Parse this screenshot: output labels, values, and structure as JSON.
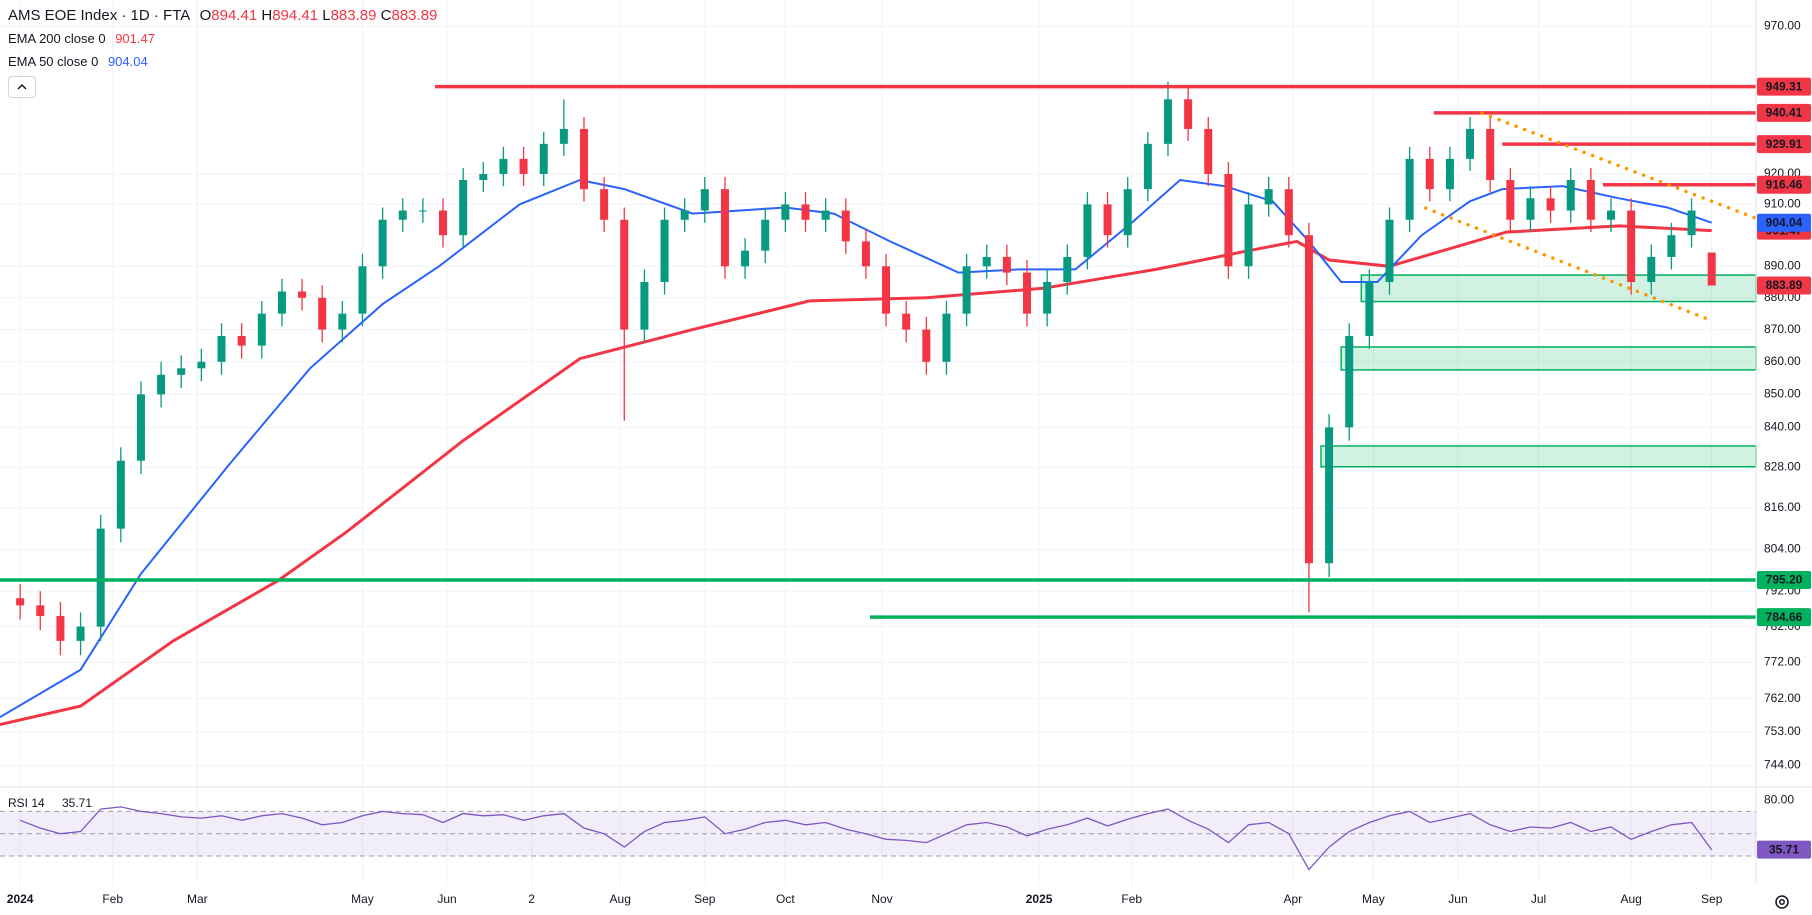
{
  "chart_data": {
    "type": "candlestick",
    "title": "AMS EOE Index · 1D · FTA",
    "ohlc_labels": [
      "O",
      "H",
      "L",
      "C"
    ],
    "log_scale": true,
    "grid": true,
    "up_color": "#089981",
    "down_color": "#f23645",
    "xlim": [
      -5,
      431
    ],
    "ylim": [
      738.5,
      979.3
    ],
    "yticks": [
      {
        "value": 744,
        "label": "744.00"
      },
      {
        "value": 753,
        "label": "753.00"
      },
      {
        "value": 762,
        "label": "762.00"
      },
      {
        "value": 772,
        "label": "772.00"
      },
      {
        "value": 782,
        "label": "782.00"
      },
      {
        "value": 792,
        "label": "792.00"
      },
      {
        "value": 804,
        "label": "804.00"
      },
      {
        "value": 816,
        "label": "816.00"
      },
      {
        "value": 828,
        "label": "828.00"
      },
      {
        "value": 840,
        "label": "840.00"
      },
      {
        "value": 850,
        "label": "850.00"
      },
      {
        "value": 860,
        "label": "860.00"
      },
      {
        "value": 870,
        "label": "870.00"
      },
      {
        "value": 880,
        "label": "880.00"
      },
      {
        "value": 890,
        "label": "890.00"
      },
      {
        "value": 910,
        "label": "910.00"
      },
      {
        "value": 920,
        "label": "920.00"
      },
      {
        "value": 970,
        "label": "970.00"
      }
    ],
    "xticks": [
      {
        "value": 0,
        "label": "2024"
      },
      {
        "value": 23,
        "label": "Feb"
      },
      {
        "value": 44,
        "label": "Mar"
      },
      {
        "value": 85,
        "label": "May"
      },
      {
        "value": 106,
        "label": "Jun"
      },
      {
        "value": 127,
        "label": "2"
      },
      {
        "value": 149,
        "label": "Aug"
      },
      {
        "value": 170,
        "label": "Sep"
      },
      {
        "value": 190,
        "label": "Oct"
      },
      {
        "value": 214,
        "label": "Nov"
      },
      {
        "value": 253,
        "label": "2025"
      },
      {
        "value": 276,
        "label": "Feb"
      },
      {
        "value": 316,
        "label": "Apr"
      },
      {
        "value": 336,
        "label": "May"
      },
      {
        "value": 357,
        "label": "Jun"
      },
      {
        "value": 377,
        "label": "Jul"
      },
      {
        "value": 400,
        "label": "Aug"
      },
      {
        "value": 420,
        "label": "Sep"
      }
    ],
    "x": [
      0,
      5,
      10,
      15,
      20,
      25,
      30,
      35,
      40,
      45,
      50,
      55,
      60,
      65,
      70,
      75,
      80,
      85,
      90,
      95,
      100,
      105,
      110,
      115,
      120,
      125,
      130,
      135,
      140,
      145,
      150,
      155,
      160,
      165,
      170,
      175,
      180,
      185,
      190,
      195,
      200,
      205,
      210,
      215,
      220,
      225,
      230,
      235,
      240,
      245,
      250,
      255,
      260,
      265,
      270,
      275,
      280,
      285,
      290,
      295,
      300,
      305,
      310,
      315,
      320,
      325,
      330,
      335,
      340,
      345,
      350,
      355,
      360,
      365,
      370,
      375,
      380,
      385,
      390,
      395,
      400,
      405,
      410,
      415,
      420
    ],
    "open": [
      790,
      788,
      785,
      778,
      782,
      810,
      830,
      850,
      856,
      858,
      860,
      868,
      865,
      875,
      882,
      880,
      870,
      875,
      890,
      905,
      908,
      908,
      900,
      918,
      920,
      925,
      920,
      930,
      935,
      915,
      905,
      870,
      885,
      905,
      908,
      915,
      890,
      895,
      905,
      910,
      905,
      908,
      898,
      890,
      875,
      870,
      860,
      875,
      890,
      893,
      888,
      875,
      885,
      893,
      910,
      900,
      915,
      930,
      945,
      935,
      920,
      890,
      910,
      915,
      900,
      800,
      840,
      868,
      885,
      905,
      925,
      915,
      925,
      935,
      918,
      905,
      912,
      908,
      918,
      905,
      908,
      885,
      893,
      900,
      894.41
    ],
    "high": [
      794,
      792,
      789,
      786,
      814,
      834,
      854,
      860,
      862,
      864,
      872,
      872,
      879,
      886,
      886,
      884,
      879,
      894,
      909,
      912,
      912,
      912,
      922,
      924,
      929,
      929,
      934,
      945,
      939,
      919,
      909,
      889,
      909,
      912,
      919,
      919,
      899,
      909,
      914,
      914,
      912,
      912,
      902,
      894,
      879,
      874,
      879,
      894,
      897,
      897,
      892,
      889,
      897,
      914,
      914,
      919,
      934,
      951,
      949,
      939,
      924,
      914,
      919,
      919,
      904,
      844,
      872,
      889,
      909,
      929,
      929,
      929,
      939,
      939,
      922,
      916,
      916,
      922,
      922,
      912,
      912,
      897,
      904,
      912,
      894.41
    ],
    "low": [
      784,
      781,
      774,
      774,
      778,
      806,
      826,
      846,
      852,
      854,
      856,
      861,
      861,
      871,
      876,
      866,
      866,
      871,
      886,
      901,
      904,
      896,
      896,
      914,
      916,
      916,
      916,
      926,
      911,
      901,
      842,
      866,
      881,
      901,
      904,
      886,
      886,
      891,
      901,
      901,
      901,
      894,
      886,
      871,
      866,
      856,
      856,
      871,
      886,
      884,
      871,
      871,
      881,
      889,
      896,
      896,
      911,
      926,
      931,
      916,
      886,
      886,
      906,
      896,
      786,
      796,
      836,
      864,
      881,
      901,
      911,
      911,
      921,
      914,
      901,
      901,
      904,
      904,
      901,
      901,
      881,
      881,
      889,
      896,
      883.89
    ],
    "close": [
      788,
      785,
      778,
      782,
      810,
      830,
      850,
      856,
      858,
      860,
      868,
      865,
      875,
      882,
      880,
      870,
      875,
      890,
      905,
      908,
      908,
      900,
      918,
      920,
      925,
      920,
      930,
      935,
      915,
      905,
      870,
      885,
      905,
      908,
      915,
      890,
      895,
      905,
      910,
      905,
      908,
      898,
      890,
      875,
      870,
      860,
      875,
      890,
      893,
      888,
      875,
      885,
      893,
      910,
      900,
      915,
      930,
      945,
      935,
      920,
      890,
      910,
      915,
      900,
      800,
      840,
      868,
      885,
      905,
      925,
      915,
      925,
      935,
      918,
      905,
      912,
      908,
      918,
      905,
      908,
      885,
      893,
      900,
      908,
      883.89
    ],
    "series": [
      {
        "name": "EMA 200 close 0",
        "color": "#f23645",
        "x": [
          -5,
          15,
          38,
          64,
          81,
          110,
          139,
          167,
          196,
          225,
          254,
          282,
          305,
          317,
          325,
          340,
          369,
          397,
          420
        ],
        "values": [
          755,
          760,
          778,
          795,
          809,
          836,
          861,
          870,
          879,
          880,
          883,
          889,
          895,
          898,
          892,
          890,
          901,
          903,
          901.47
        ]
      },
      {
        "name": "EMA 50 close 0",
        "color": "#2962ff",
        "x": [
          -5,
          15,
          30,
          52,
          72,
          90,
          104,
          124,
          139,
          150,
          167,
          190,
          202,
          216,
          233,
          248,
          262,
          276,
          288,
          299,
          311,
          320,
          328,
          337,
          348,
          360,
          368,
          383,
          397,
          409,
          420
        ],
        "values": [
          757,
          770,
          797,
          829,
          858,
          878,
          890,
          910,
          918,
          915,
          907,
          909,
          907,
          898,
          888,
          889,
          889,
          904,
          918,
          916,
          911,
          898,
          885,
          885,
          900,
          911,
          915,
          916,
          912,
          909,
          904.04
        ]
      }
    ],
    "levels": [
      {
        "value": 949.31,
        "color": "#f23645",
        "x_start": 103
      },
      {
        "value": 940.41,
        "color": "#f23645",
        "x_start": 351
      },
      {
        "value": 929.91,
        "color": "#f23645",
        "x_start": 368
      },
      {
        "value": 916.46,
        "color": "#f23645",
        "x_start": 393
      },
      {
        "value": 795.2,
        "label": "795.20",
        "color": "#00b15d",
        "x_start": -5
      },
      {
        "value": 784.66,
        "color": "#00b15d",
        "x_start": 211
      }
    ],
    "zones": [
      {
        "top": 887.2,
        "bottom": 878.8,
        "x_start": 333,
        "color": "#00b15d"
      },
      {
        "top": 864.6,
        "bottom": 857.5,
        "x_start": 328,
        "color": "#00b15d"
      },
      {
        "top": 834.4,
        "bottom": 828.2,
        "x_start": 323,
        "color": "#00b15d"
      }
    ],
    "trend_lines": [
      {
        "color": "#ff9800",
        "x": [
          363,
          432
        ],
        "values": [
          940.3,
          905
        ]
      },
      {
        "color": "#ff9800",
        "x": [
          349,
          419
        ],
        "values": [
          908.8,
          873.3
        ]
      }
    ],
    "rsi": {
      "name": "RSI 14",
      "color": "#7e57c2",
      "ylim": [
        5,
        90
      ],
      "yticks": [
        {
          "value": 80,
          "label": "80.00"
        }
      ],
      "hlines": [
        70,
        50,
        30
      ],
      "values": [
        62,
        55,
        50,
        52,
        72,
        74,
        70,
        68,
        65,
        64,
        66,
        62,
        66,
        68,
        64,
        58,
        60,
        66,
        70,
        68,
        67,
        60,
        68,
        66,
        67,
        62,
        66,
        68,
        55,
        50,
        38,
        52,
        60,
        62,
        65,
        50,
        54,
        60,
        62,
        58,
        60,
        54,
        50,
        45,
        44,
        42,
        50,
        58,
        60,
        56,
        48,
        54,
        58,
        64,
        57,
        63,
        68,
        72,
        62,
        54,
        42,
        58,
        60,
        50,
        18,
        38,
        52,
        60,
        66,
        70,
        60,
        64,
        68,
        58,
        52,
        56,
        55,
        60,
        52,
        56,
        45,
        52,
        58,
        60,
        35.71
      ]
    }
  }
}
